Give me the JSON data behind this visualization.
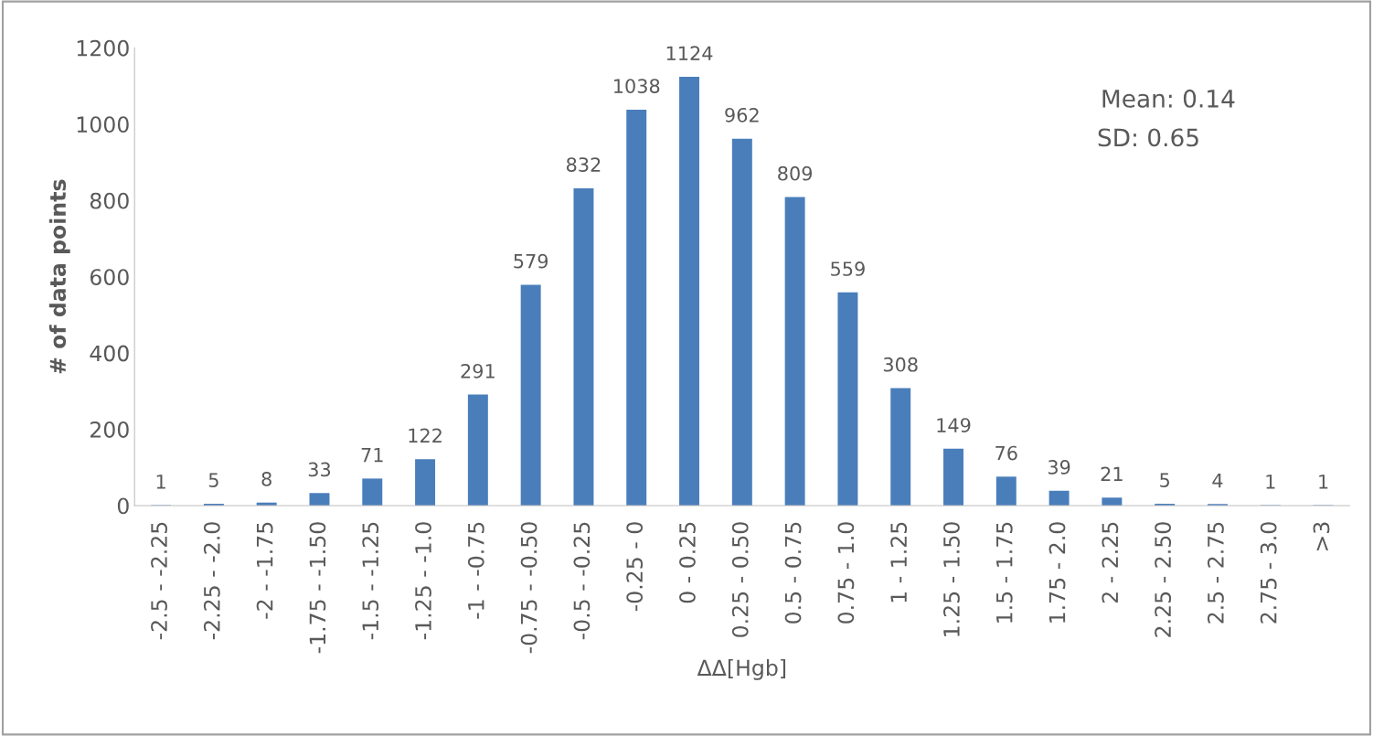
{
  "chart_data": {
    "type": "bar",
    "xlabel": "ΔΔ[Hgb]",
    "ylabel": "# of data points",
    "categories": [
      "-2.5 - -2.25",
      "-2.25 - -2.0",
      "-2 - -1.75",
      "-1.75 - -1.50",
      "-1.5 - -1.25",
      "-1.25 - -1.0",
      "-1 - -0.75",
      "-0.75 - -0.50",
      "-0.5 - -0.25",
      "-0.25 - 0",
      "0 - 0.25",
      "0.25 - 0.50",
      "0.5 - 0.75",
      "0.75 - 1.0",
      "1 - 1.25",
      "1.25 - 1.50",
      "1.5 - 1.75",
      "1.75 - 2.0",
      "2 - 2.25",
      "2.25 - 2.50",
      "2.5 - 2.75",
      "2.75 - 3.0",
      ">3"
    ],
    "values": [
      1,
      5,
      8,
      33,
      71,
      122,
      291,
      579,
      832,
      1038,
      1124,
      962,
      809,
      559,
      308,
      149,
      76,
      39,
      21,
      5,
      4,
      1,
      1
    ],
    "color": "#4a7ebb",
    "data_labels": true,
    "ylim": [
      0,
      1200
    ],
    "yticks": [
      0,
      200,
      400,
      600,
      800,
      1000,
      1200
    ],
    "grid": false,
    "legend": false,
    "annotations": [
      "Mean: 0.14",
      "SD: 0.65"
    ]
  }
}
